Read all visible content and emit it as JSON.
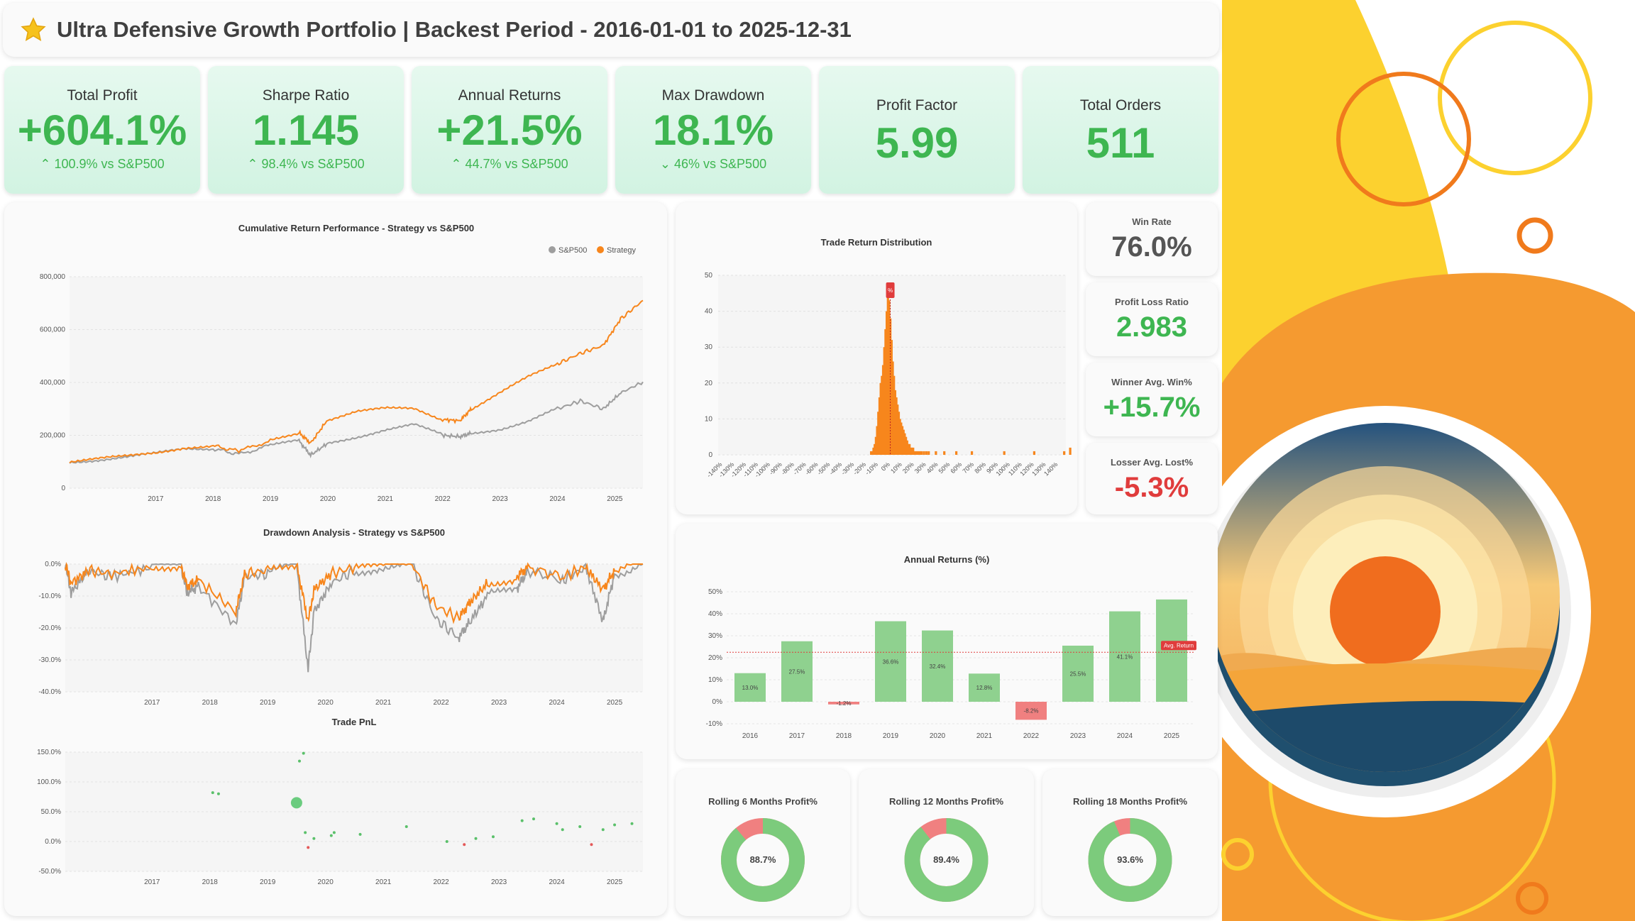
{
  "header": {
    "title": "Ultra Defensive Growth Portfolio | Backest Period - 2016-01-01 to 2025-12-31",
    "icon": "star-icon"
  },
  "kpis": [
    {
      "label": "Total Profit",
      "value": "+604.1%",
      "compare": "100.9% vs S&P500",
      "dir": "up"
    },
    {
      "label": "Sharpe Ratio",
      "value": "1.145",
      "compare": "98.4% vs S&P500",
      "dir": "up"
    },
    {
      "label": "Annual Returns",
      "value": "+21.5%",
      "compare": "44.7% vs S&P500",
      "dir": "up"
    },
    {
      "label": "Max Drawdown",
      "value": "18.1%",
      "compare": "46% vs S&P500",
      "dir": "down"
    },
    {
      "label": "Profit Factor",
      "value": "5.99"
    },
    {
      "label": "Total Orders",
      "value": "511"
    }
  ],
  "side_stats": [
    {
      "label": "Win Rate",
      "value": "76.0%",
      "color": "#555555"
    },
    {
      "label": "Profit Loss Ratio",
      "value": "2.983",
      "color": "#3eb651"
    },
    {
      "label": "Winner Avg. Win%",
      "value": "+15.7%",
      "color": "#3eb651"
    },
    {
      "label": "Losser Avg. Lost%",
      "value": "-5.3%",
      "color": "#e03c3c"
    }
  ],
  "colors": {
    "strategy": "#f7861c",
    "sp500": "#9e9e9e",
    "positive": "#3eb651",
    "negative": "#e03c3c",
    "bar_pos": "#8fd18f",
    "bar_neg": "#f08080"
  },
  "chart_data": [
    {
      "id": "cumulative",
      "type": "line",
      "title": "Cumulative Return Performance - Strategy vs S&P500",
      "legend": [
        "S&P500",
        "Strategy"
      ],
      "legend_position": "top-right",
      "x_ticks": [
        "2017",
        "2018",
        "2019",
        "2020",
        "2021",
        "2022",
        "2023",
        "2024",
        "2025"
      ],
      "y_ticks": [
        "800,000",
        "600,000",
        "400,000",
        "200,000",
        "0"
      ],
      "ylim": [
        0,
        800000
      ],
      "xlim": [
        2016.0,
        2025.99
      ],
      "series": [
        {
          "name": "S&P500",
          "x": [
            2016.0,
            2016.5,
            2017.0,
            2017.5,
            2018.0,
            2018.5,
            2018.95,
            2019.5,
            2020.0,
            2020.2,
            2020.5,
            2021.0,
            2021.5,
            2022.0,
            2022.5,
            2022.8,
            2023.0,
            2023.5,
            2024.0,
            2024.5,
            2024.9,
            2025.3,
            2025.6,
            2025.99
          ],
          "values": [
            100000,
            108000,
            118000,
            130000,
            148000,
            150000,
            128000,
            162000,
            178000,
            125000,
            170000,
            195000,
            222000,
            240000,
            200000,
            195000,
            208000,
            225000,
            255000,
            300000,
            330000,
            300000,
            360000,
            402000
          ]
        },
        {
          "name": "Strategy",
          "x": [
            2016.0,
            2016.5,
            2017.0,
            2017.5,
            2018.0,
            2018.5,
            2018.95,
            2019.5,
            2020.0,
            2020.2,
            2020.5,
            2021.0,
            2021.5,
            2022.0,
            2022.5,
            2022.8,
            2023.0,
            2023.5,
            2024.0,
            2024.5,
            2024.9,
            2025.3,
            2025.6,
            2025.99
          ],
          "values": [
            100000,
            110000,
            120000,
            135000,
            155000,
            160000,
            140000,
            180000,
            210000,
            170000,
            260000,
            290000,
            300000,
            300000,
            260000,
            255000,
            300000,
            360000,
            420000,
            470000,
            510000,
            540000,
            640000,
            710000
          ]
        }
      ]
    },
    {
      "id": "drawdown",
      "type": "line",
      "title": "Drawdown Analysis - Strategy vs S&P500",
      "x_ticks": [
        "2017",
        "2018",
        "2019",
        "2020",
        "2021",
        "2022",
        "2023",
        "2024",
        "2025"
      ],
      "y_ticks": [
        "0.0%",
        "-10.0%",
        "-20.0%",
        "-30.0%",
        "-40.0%"
      ],
      "ylim": [
        -40,
        0
      ],
      "xlim": [
        2016.0,
        2025.99
      ],
      "series": [
        {
          "name": "S&P500",
          "x": [
            2016.0,
            2016.1,
            2016.4,
            2016.8,
            2017.5,
            2018.0,
            2018.1,
            2018.3,
            2018.95,
            2019.1,
            2019.5,
            2020.0,
            2020.2,
            2020.3,
            2020.6,
            2021.0,
            2021.5,
            2022.0,
            2022.4,
            2022.8,
            2023.0,
            2023.3,
            2023.8,
            2024.0,
            2024.6,
            2025.0,
            2025.3,
            2025.5,
            2025.99
          ],
          "values": [
            0,
            -9,
            -2,
            -4,
            -1,
            0,
            -9,
            -7,
            -19,
            -4,
            -3,
            0,
            -33,
            -15,
            -6,
            -2,
            -1,
            0,
            -17,
            -23,
            -18,
            -10,
            -8,
            -2,
            -5,
            -1,
            -18,
            -3,
            0
          ]
        },
        {
          "name": "Strategy",
          "x": [
            2016.0,
            2016.1,
            2016.4,
            2016.8,
            2017.5,
            2018.0,
            2018.1,
            2018.3,
            2018.95,
            2019.1,
            2019.5,
            2020.0,
            2020.2,
            2020.3,
            2020.6,
            2021.0,
            2021.5,
            2022.0,
            2022.4,
            2022.8,
            2023.0,
            2023.3,
            2023.8,
            2024.0,
            2024.6,
            2025.0,
            2025.3,
            2025.5,
            2025.99
          ],
          "values": [
            0,
            -6,
            -2,
            -3,
            -1,
            0,
            -7,
            -5,
            -15,
            -3,
            -2,
            0,
            -18,
            -8,
            -3,
            -1,
            -1,
            0,
            -13,
            -17,
            -12,
            -6,
            -4,
            -1,
            -4,
            -1,
            -8,
            -2,
            0
          ]
        }
      ]
    },
    {
      "id": "trade_pnl",
      "type": "scatter",
      "title": "Trade PnL",
      "x_ticks": [
        "2017",
        "2018",
        "2019",
        "2020",
        "2021",
        "2022",
        "2023",
        "2024",
        "2025"
      ],
      "y_ticks": [
        "150.0%",
        "100.0%",
        "50.0%",
        "0.0%",
        "-50.0%"
      ],
      "ylim": [
        -50,
        150
      ],
      "xlim": [
        2016.0,
        2025.99
      ],
      "points": [
        {
          "x": 2018.55,
          "y": 82
        },
        {
          "x": 2018.65,
          "y": 80
        },
        {
          "x": 2020.0,
          "y": 65,
          "big": true
        },
        {
          "x": 2020.05,
          "y": 135
        },
        {
          "x": 2020.12,
          "y": 148
        },
        {
          "x": 2020.15,
          "y": 15
        },
        {
          "x": 2020.2,
          "y": -10
        },
        {
          "x": 2020.3,
          "y": 5
        },
        {
          "x": 2020.6,
          "y": 10
        },
        {
          "x": 2020.65,
          "y": 15
        },
        {
          "x": 2021.1,
          "y": 12
        },
        {
          "x": 2021.9,
          "y": 25
        },
        {
          "x": 2022.6,
          "y": 0
        },
        {
          "x": 2022.9,
          "y": -5
        },
        {
          "x": 2023.1,
          "y": 5
        },
        {
          "x": 2023.4,
          "y": 8
        },
        {
          "x": 2023.9,
          "y": 35
        },
        {
          "x": 2024.1,
          "y": 38
        },
        {
          "x": 2024.5,
          "y": 30
        },
        {
          "x": 2024.6,
          "y": 20
        },
        {
          "x": 2024.9,
          "y": 25
        },
        {
          "x": 2025.1,
          "y": -5
        },
        {
          "x": 2025.3,
          "y": 20
        },
        {
          "x": 2025.5,
          "y": 28
        },
        {
          "x": 2025.8,
          "y": 30
        }
      ]
    },
    {
      "id": "distribution",
      "type": "bar",
      "title": "Trade Return Distribution",
      "annotation": "%",
      "y_ticks": [
        "50",
        "40",
        "30",
        "20",
        "10",
        "0"
      ],
      "ylim": [
        0,
        50
      ],
      "categories": [
        "-140%",
        "-130%",
        "-120%",
        "-110%",
        "-100%",
        "-90%",
        "-80%",
        "-70%",
        "-60%",
        "-50%",
        "-40%",
        "-30%",
        "-20%",
        "-10%",
        "0%",
        "10%",
        "20%",
        "30%",
        "40%",
        "50%",
        "60%",
        "70%",
        "80%",
        "90%",
        "100%",
        "110%",
        "120%",
        "130%",
        "140%"
      ],
      "bins_x": [
        -16,
        -15,
        -14,
        -13,
        -12,
        -11,
        -10,
        -9,
        -8,
        -7,
        -6,
        -5,
        -4,
        -3,
        -2,
        -1,
        0,
        1,
        2,
        3,
        4,
        5,
        6,
        7,
        8,
        9,
        10,
        11,
        12,
        13,
        14,
        15,
        16,
        17,
        18,
        19,
        20,
        21,
        22,
        23,
        24,
        25,
        26,
        28,
        30,
        32,
        38,
        45,
        55,
        68,
        95,
        120,
        145,
        150
      ],
      "bins_y": [
        1,
        1,
        2,
        3,
        5,
        8,
        12,
        16,
        20,
        22,
        25,
        30,
        35,
        40,
        46,
        43,
        38,
        32,
        26,
        22,
        18,
        16,
        14,
        12,
        10,
        9,
        8,
        7,
        6,
        5,
        4,
        3,
        3,
        2,
        2,
        2,
        1,
        1,
        1,
        1,
        1,
        1,
        1,
        1,
        1,
        1,
        1,
        1,
        1,
        1,
        1,
        1,
        1,
        2
      ]
    },
    {
      "id": "annual",
      "type": "bar",
      "title": "Annual Returns (%)",
      "categories": [
        "2016",
        "2017",
        "2018",
        "2019",
        "2020",
        "2021",
        "2022",
        "2023",
        "2024",
        "2025"
      ],
      "values": [
        13.0,
        27.5,
        -1.2,
        36.6,
        32.4,
        12.8,
        -8.2,
        25.5,
        41.1,
        46.5
      ],
      "labels": [
        "13.0%",
        "27.5%",
        "-1.2%",
        "36.6%",
        "32.4%",
        "12.8%",
        "-8.2%",
        "25.5%",
        "41.1%",
        ""
      ],
      "avg_return": 22.5,
      "avg_label": "Avg. Return",
      "y_ticks": [
        "50%",
        "40%",
        "30%",
        "20%",
        "10%",
        "0%",
        "-10%"
      ],
      "ylim": [
        -10,
        50
      ]
    },
    {
      "id": "rolling6",
      "type": "pie",
      "title": "Rolling 6 Months Profit%",
      "value": 88.7,
      "label": "88.7%"
    },
    {
      "id": "rolling12",
      "type": "pie",
      "title": "Rolling 12 Months Profit%",
      "value": 89.4,
      "label": "89.4%"
    },
    {
      "id": "rolling18",
      "type": "pie",
      "title": "Rolling 18 Months Profit%",
      "value": 93.6,
      "label": "93.6%"
    }
  ],
  "decor": {
    "logo": "sunset-logo-icon"
  }
}
